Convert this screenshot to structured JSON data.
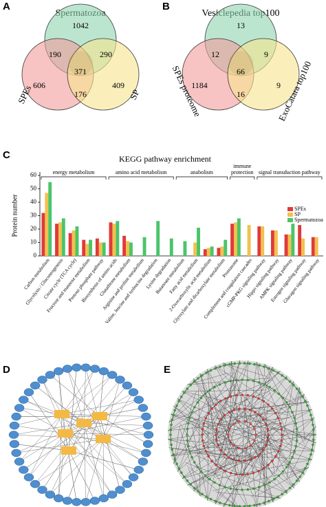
{
  "panel_letters": [
    "A",
    "B",
    "C",
    "D",
    "E"
  ],
  "venn_a": {
    "title": "Spermatozoa",
    "sets": [
      "SPEs",
      "SP"
    ],
    "regions": {
      "top": "1042",
      "top_left": "190",
      "top_right": "290",
      "center": "371",
      "left": "606",
      "bottom": "176",
      "right": "409"
    }
  },
  "venn_b": {
    "title": "Vesiclepedia top100",
    "sets": [
      "SPEs proteome",
      "ExoCatara top100"
    ],
    "regions": {
      "top": "13",
      "top_left": "12",
      "top_right": "9",
      "center": "66",
      "left": "1184",
      "bottom": "16",
      "right": "9"
    }
  },
  "chart_data": {
    "type": "bar",
    "title": "KEGG pathway enrichment",
    "y_label": "Protein number",
    "categories": [
      "Carbon metabolism",
      "Glycolysis / Gluconeogenesis",
      "Citrate cycle (TCA cycle)",
      "Fructose and mannose metabolism",
      "Pentose phosphate pathway",
      "Biosynthesis of amino acids",
      "Glutathione metabolism",
      "Arginine and proline metabolism",
      "Valine, leucine and isoleucine degradation",
      "Lysine degradation",
      "Butanoate metabolism",
      "Fatty acid metabolism",
      "2-Oxocarboxylic acid metabolism",
      "Glyoxylate and dicarboxylate metabolism",
      "Proteasome",
      "Complement and coagulation cascades",
      "cGMP-PKG signaling pathway",
      "Hippo signaling pathway",
      "AMPK signaling pathway",
      "Estrogen signaling pathway",
      "Glucagon signaling pathway"
    ],
    "groups": [
      {
        "label": "energy metabolism",
        "size": 5
      },
      {
        "label": "amino acid metabolism",
        "size": 5
      },
      {
        "label": "anabolism",
        "size": 4
      },
      {
        "label": "immune protection",
        "size": 2
      },
      {
        "label": "signal transduction pathway",
        "size": 5
      }
    ],
    "series": [
      {
        "name": "SPEs",
        "color": "#e03a3a",
        "values": [
          32,
          24,
          17,
          12,
          13,
          25,
          15,
          0,
          0,
          0,
          0,
          0,
          5,
          6,
          24,
          0,
          22,
          19,
          16,
          23,
          14
        ]
      },
      {
        "name": "SP",
        "color": "#f2c14e",
        "values": [
          47,
          25,
          19,
          9,
          10,
          24,
          11,
          0,
          0,
          0,
          0,
          10,
          6,
          7,
          25,
          23,
          22,
          19,
          16,
          13,
          14
        ]
      },
      {
        "name": "Spermatozoa",
        "color": "#4cc46a",
        "values": [
          55,
          28,
          22,
          12,
          10,
          26,
          10,
          14,
          26,
          13,
          11,
          21,
          7,
          12,
          28,
          0,
          0,
          0,
          24,
          0,
          0
        ]
      }
    ],
    "ylim": [
      0,
      60
    ],
    "yticks": [
      0,
      10,
      20,
      30,
      40,
      50,
      60
    ],
    "legend": "top-right"
  }
}
